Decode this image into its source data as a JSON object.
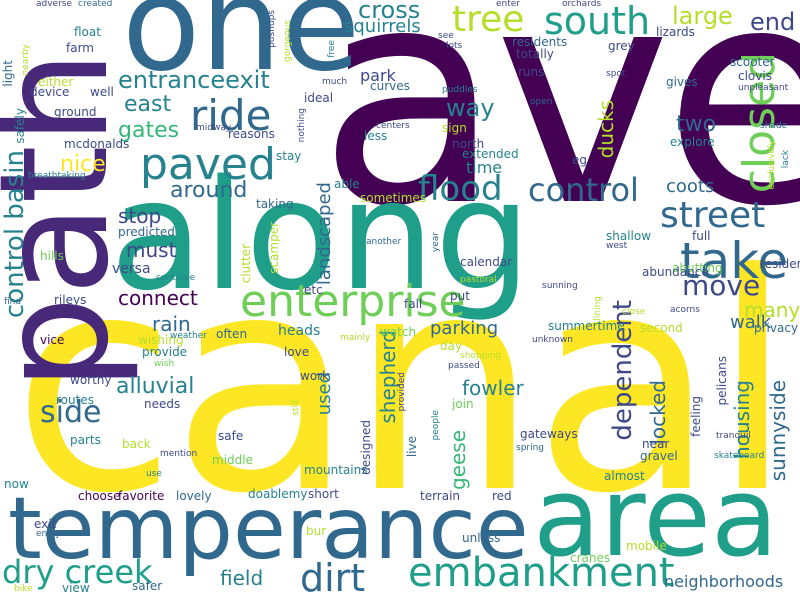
{
  "palette": {
    "yellow": "#fde725",
    "lime": "#b5de2b",
    "green": "#6ece58",
    "sea": "#35b779",
    "teal": "#1f9e89",
    "blue": "#26828e",
    "steel": "#31688e",
    "indigo": "#3e4989",
    "purple": "#482878",
    "dark": "#440154"
  },
  "words": [
    "ave",
    "canal",
    "path",
    "along",
    "one",
    "area",
    "temperance",
    "enterprise",
    "embankment",
    "take",
    "paved",
    "flood",
    "control",
    "street",
    "closed",
    "ride",
    "south",
    "tree",
    "dirt",
    "dry creek",
    "move",
    "control basin",
    "cross",
    "entranceexit",
    "large",
    "end",
    "way",
    "east",
    "gates",
    "nice",
    "around",
    "stop",
    "must",
    "connect",
    "rain",
    "dependent",
    "side",
    "alluvial",
    "fowler",
    "shepherd",
    "geese",
    "housing",
    "sunnyside",
    "locked",
    "many",
    "walk",
    "parking",
    "ducks",
    "two",
    "coots",
    "time",
    "squirrels",
    "park",
    "used",
    "neighborhoods",
    "field",
    "landscaped",
    "safer",
    "view",
    "bur",
    "unless",
    "cranes",
    "mobile",
    "red",
    "terrain",
    "favorite",
    "lovely",
    "doablemy",
    "short",
    "choose",
    "now",
    "exit",
    "enjoy",
    "bike",
    "vice",
    "rileys",
    "versa",
    "predicted",
    "hills",
    "worthy",
    "routes",
    "parts",
    "back",
    "safe",
    "middle",
    "use",
    "mention",
    "needs",
    "provide",
    "wish",
    "wishing",
    "weather",
    "often",
    "heads",
    "love",
    "work",
    "mountains",
    "designed",
    "live",
    "almost",
    "gravel",
    "near",
    "tranquil",
    "skateboard",
    "lack",
    "residence",
    "full",
    "abutting",
    "shallow",
    "west",
    "abundance",
    "acorns",
    "close",
    "second",
    "summertime",
    "unknown",
    "privacy",
    "pelicans",
    "feeling",
    "day",
    "shopping",
    "passed",
    "join",
    "people",
    "provided",
    "still",
    "mainly",
    "gateways",
    "spring",
    "watch",
    "etc",
    "fall",
    "put",
    "calendar",
    "year",
    "pastoral",
    "sunning",
    "lining",
    "another",
    "sometimes",
    "able",
    "taking",
    "scamper",
    "clutter",
    "continue",
    "mcdonalds",
    "reasons",
    "stay",
    "breathtaking",
    "find",
    "safely",
    "device",
    "ground",
    "either",
    "light",
    "nearby",
    "adverse",
    "created",
    "farm",
    "float",
    "well",
    "pushups",
    "gorgeous",
    "free",
    "much",
    "ideal",
    "curves",
    "nothing",
    "less",
    "centers",
    "sign",
    "midway",
    "puddles",
    "open",
    "north",
    "extended",
    "enter",
    "eg",
    "orchards",
    "lizards",
    "residents",
    "totally",
    "runs",
    "lots",
    "see",
    "grey",
    "scooter",
    "clovis",
    "unpleasant",
    "spot",
    "gives",
    "shade",
    "explore",
    "exclusively"
  ]
}
